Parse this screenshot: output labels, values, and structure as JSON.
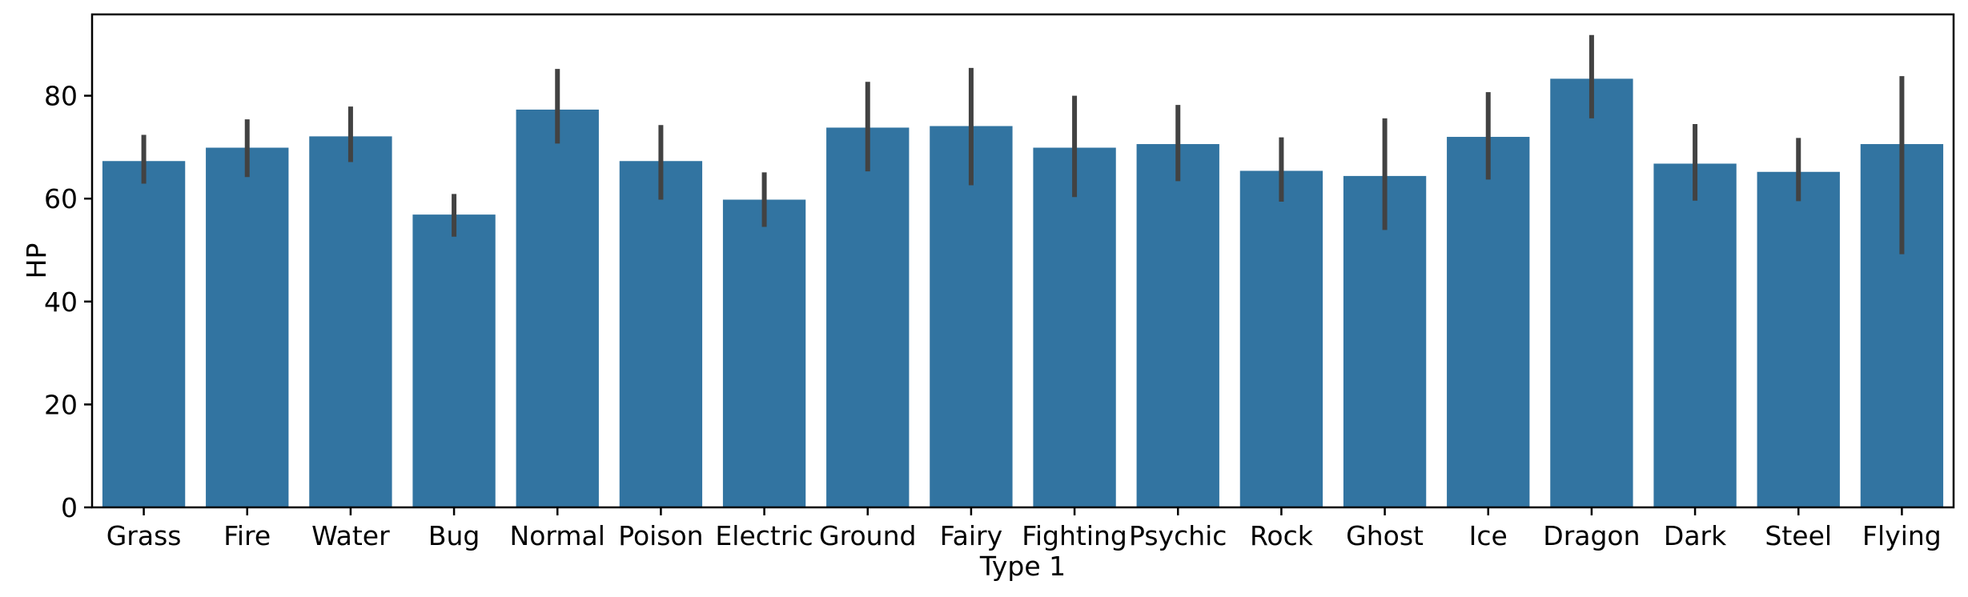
{
  "chart_data": {
    "type": "bar",
    "title": "",
    "xlabel": "Type 1",
    "ylabel": "HP",
    "categories": [
      "Grass",
      "Fire",
      "Water",
      "Bug",
      "Normal",
      "Poison",
      "Electric",
      "Ground",
      "Fairy",
      "Fighting",
      "Psychic",
      "Rock",
      "Ghost",
      "Ice",
      "Dragon",
      "Dark",
      "Steel",
      "Flying"
    ],
    "values": [
      67.3,
      69.9,
      72.1,
      56.9,
      77.3,
      67.3,
      59.8,
      73.8,
      74.1,
      69.9,
      70.6,
      65.4,
      64.4,
      72.0,
      83.3,
      66.8,
      65.2,
      70.6
    ],
    "error_low": [
      62.9,
      64.2,
      67.1,
      52.6,
      70.7,
      59.8,
      54.5,
      65.3,
      62.6,
      60.3,
      63.4,
      59.4,
      53.9,
      63.7,
      75.6,
      59.6,
      59.5,
      49.2
    ],
    "error_high": [
      72.4,
      75.4,
      77.9,
      60.9,
      85.2,
      74.3,
      65.1,
      82.7,
      85.4,
      80.0,
      78.2,
      71.9,
      75.6,
      80.7,
      91.8,
      74.5,
      71.8,
      83.8
    ],
    "yticks": [
      0,
      20,
      40,
      60,
      80
    ],
    "ylim": [
      0,
      95.8
    ],
    "grid": false,
    "legend_position": "none",
    "bar_color": "#3274a1",
    "error_color": "#424242",
    "axis_color": "#000000",
    "background_color": "#ffffff"
  }
}
